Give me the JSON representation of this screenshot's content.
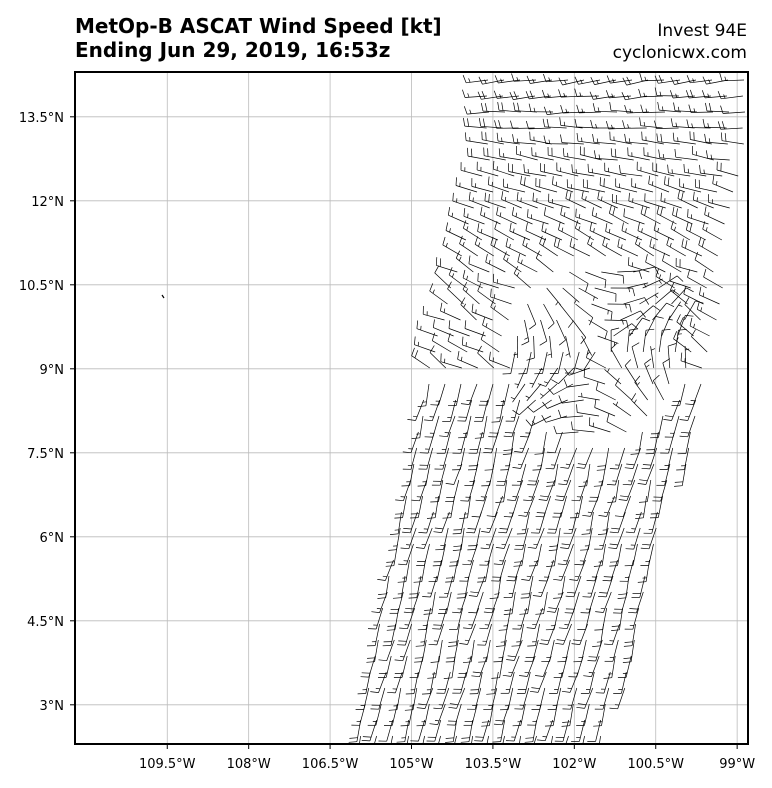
{
  "title": {
    "line1": "MetOp-B ASCAT Wind Speed [kt]",
    "line2": "Ending Jun 29, 2019, 16:53z"
  },
  "source": {
    "storm": "Invest 94E",
    "site": "cyclonicwx.com"
  },
  "map": {
    "lon_range": [
      -111.2,
      -98.8
    ],
    "lat_range": [
      2.3,
      14.3
    ],
    "lon_ticks": [
      {
        "value": -109.5,
        "label": "109.5°W"
      },
      {
        "value": -108.0,
        "label": "108°W"
      },
      {
        "value": -106.5,
        "label": "106.5°W"
      },
      {
        "value": -105.0,
        "label": "105°W"
      },
      {
        "value": -103.5,
        "label": "103.5°W"
      },
      {
        "value": -102.0,
        "label": "102°W"
      },
      {
        "value": -100.5,
        "label": "100.5°W"
      },
      {
        "value": -99.0,
        "label": "99°W"
      }
    ],
    "lat_ticks": [
      {
        "value": 13.5,
        "label": "13.5°N"
      },
      {
        "value": 12.0,
        "label": "12°N"
      },
      {
        "value": 10.5,
        "label": "10.5°N"
      },
      {
        "value": 9.0,
        "label": "9°N"
      },
      {
        "value": 7.5,
        "label": "7.5°N"
      },
      {
        "value": 6.0,
        "label": "6°N"
      },
      {
        "value": 4.5,
        "label": "4.5°N"
      },
      {
        "value": 3.0,
        "label": "3°N"
      }
    ],
    "gridlines": true,
    "colors": {
      "grid": "#bbbbbb",
      "barb": "#000000",
      "frame": "#000000"
    }
  }
}
